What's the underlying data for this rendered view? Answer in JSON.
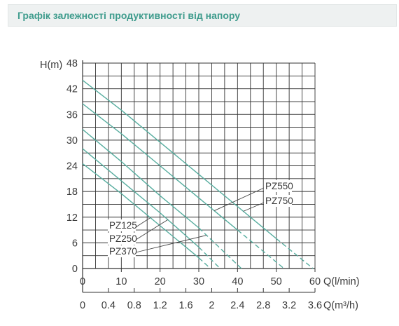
{
  "chart_data": {
    "type": "line",
    "title": "Графік залежності продуктивності від напору",
    "ylabel": "H(m)",
    "xlabel": "Q(l/min)",
    "x2label": "Q(m³/h)",
    "xlim": [
      0,
      60
    ],
    "x2lim": [
      0,
      3.6
    ],
    "ylim": [
      0,
      48
    ],
    "xticks": [
      0,
      10,
      20,
      30,
      40,
      50,
      60
    ],
    "x2ticks": [
      0,
      0.4,
      0.8,
      1.2,
      1.6,
      2,
      2.4,
      2.8,
      3.2,
      3.6
    ],
    "yticks": [
      0,
      6,
      12,
      18,
      24,
      30,
      36,
      42,
      48
    ],
    "grid": true,
    "series": [
      {
        "name": "PZ125",
        "x": [
          0,
          10,
          20,
          30,
          33
        ],
        "y": [
          24.5,
          17.5,
          10,
          2.5,
          0
        ]
      },
      {
        "name": "PZ250",
        "x": [
          0,
          10,
          20,
          30,
          35.5
        ],
        "y": [
          28,
          20.5,
          13,
          5,
          0
        ]
      },
      {
        "name": "PZ370",
        "x": [
          0,
          10,
          20,
          30,
          41
        ],
        "y": [
          32.5,
          25,
          17,
          9.5,
          0
        ]
      },
      {
        "name": "PZ550",
        "x": [
          0,
          10,
          20,
          30,
          40,
          52
        ],
        "y": [
          38.5,
          31.5,
          24,
          16.5,
          9,
          0
        ]
      },
      {
        "name": "PZ750",
        "x": [
          0,
          10,
          20,
          30,
          40,
          50,
          59.5
        ],
        "y": [
          44,
          37,
          29.5,
          22,
          14.5,
          7,
          0
        ]
      }
    ]
  },
  "colors": {
    "curve": "#57ad9f",
    "title_text": "#3f9c8d",
    "title_bg": "#eef1f1",
    "grid": "#333333",
    "text": "#3a3a3a",
    "leader": "#444444"
  }
}
